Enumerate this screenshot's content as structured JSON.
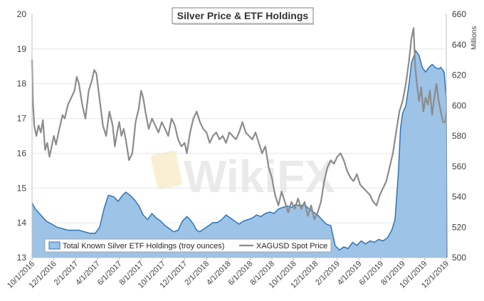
{
  "chart_data": {
    "type": "area+line",
    "title": "Silver Price & ETF Holdings",
    "watermark": "WikiFX",
    "left_axis": {
      "min": 13,
      "max": 20,
      "ticks": [
        "13",
        "14",
        "15",
        "16",
        "17",
        "18",
        "19",
        "20"
      ]
    },
    "right_axis": {
      "min": 500,
      "max": 660,
      "unit_label": "Millions",
      "ticks": [
        "500",
        "520",
        "540",
        "560",
        "580",
        "600",
        "620",
        "640",
        "660"
      ]
    },
    "x_axis": {
      "range_months": [
        0,
        38
      ],
      "ticks": [
        {
          "label": "10/1/2016",
          "m": 0
        },
        {
          "label": "12/1/2016",
          "m": 2
        },
        {
          "label": "2/1/2017",
          "m": 4
        },
        {
          "label": "4/1/2017",
          "m": 6
        },
        {
          "label": "6/1/2017",
          "m": 8
        },
        {
          "label": "8/1/2017",
          "m": 10
        },
        {
          "label": "10/1/2017",
          "m": 12
        },
        {
          "label": "12/1/2017",
          "m": 14
        },
        {
          "label": "2/1/2018",
          "m": 16
        },
        {
          "label": "4/1/2018",
          "m": 18
        },
        {
          "label": "6/1/2018",
          "m": 20
        },
        {
          "label": "8/1/2018",
          "m": 22
        },
        {
          "label": "10/1/2018",
          "m": 24
        },
        {
          "label": "12/1/2018",
          "m": 26
        },
        {
          "label": "2/1/2019",
          "m": 28
        },
        {
          "label": "4/1/2019",
          "m": 30
        },
        {
          "label": "6/1/2019",
          "m": 32
        },
        {
          "label": "8/1/2019",
          "m": 34
        },
        {
          "label": "10/1/2019",
          "m": 36
        },
        {
          "label": "12/1/2019",
          "m": 38
        }
      ]
    },
    "series": [
      {
        "name": "Total Known Silver ETF Holdings (troy ounces)",
        "type": "area",
        "axis": "right",
        "color": "#9dc3e6",
        "edge_color": "#2e75b6",
        "points": [
          [
            0,
            536
          ],
          [
            0.3,
            532
          ],
          [
            0.8,
            528
          ],
          [
            1.3,
            524
          ],
          [
            1.8,
            522
          ],
          [
            2.3,
            520
          ],
          [
            2.8,
            519
          ],
          [
            3.3,
            518
          ],
          [
            3.8,
            518
          ],
          [
            4.3,
            518
          ],
          [
            4.8,
            517
          ],
          [
            5.3,
            516
          ],
          [
            5.8,
            516
          ],
          [
            6.2,
            520
          ],
          [
            6.6,
            532
          ],
          [
            7.0,
            541
          ],
          [
            7.5,
            540
          ],
          [
            7.9,
            537
          ],
          [
            8.3,
            541
          ],
          [
            8.6,
            543
          ],
          [
            9.0,
            541
          ],
          [
            9.4,
            538
          ],
          [
            9.8,
            534
          ],
          [
            10.2,
            528
          ],
          [
            10.6,
            525
          ],
          [
            11.0,
            529
          ],
          [
            11.4,
            526
          ],
          [
            11.8,
            524
          ],
          [
            12.2,
            521
          ],
          [
            12.6,
            519
          ],
          [
            13.0,
            517
          ],
          [
            13.4,
            518
          ],
          [
            13.8,
            524
          ],
          [
            14.2,
            527
          ],
          [
            14.5,
            525
          ],
          [
            14.8,
            522
          ],
          [
            15.1,
            518
          ],
          [
            15.4,
            517
          ],
          [
            15.8,
            519
          ],
          [
            16.2,
            521
          ],
          [
            16.6,
            523
          ],
          [
            17.0,
            523
          ],
          [
            17.4,
            525
          ],
          [
            17.8,
            528
          ],
          [
            18.2,
            526
          ],
          [
            18.6,
            524
          ],
          [
            19.0,
            522
          ],
          [
            19.4,
            524
          ],
          [
            19.8,
            525
          ],
          [
            20.2,
            526
          ],
          [
            20.6,
            528
          ],
          [
            21.0,
            527
          ],
          [
            21.4,
            529
          ],
          [
            21.8,
            530
          ],
          [
            22.2,
            529
          ],
          [
            22.6,
            532
          ],
          [
            23.0,
            533
          ],
          [
            23.4,
            534
          ],
          [
            23.8,
            533
          ],
          [
            24.2,
            535
          ],
          [
            24.6,
            534
          ],
          [
            25.0,
            535
          ],
          [
            25.4,
            532
          ],
          [
            25.8,
            530
          ],
          [
            26.2,
            528
          ],
          [
            26.6,
            525
          ],
          [
            27.0,
            522
          ],
          [
            27.4,
            521
          ],
          [
            27.8,
            508
          ],
          [
            28.2,
            505
          ],
          [
            28.6,
            507
          ],
          [
            29.0,
            506
          ],
          [
            29.4,
            510
          ],
          [
            29.8,
            508
          ],
          [
            30.2,
            511
          ],
          [
            30.6,
            509
          ],
          [
            31.0,
            511
          ],
          [
            31.4,
            510
          ],
          [
            31.8,
            512
          ],
          [
            32.2,
            511
          ],
          [
            32.6,
            513
          ],
          [
            33.0,
            518
          ],
          [
            33.3,
            525
          ],
          [
            33.6,
            555
          ],
          [
            33.8,
            585
          ],
          [
            34.0,
            595
          ],
          [
            34.3,
            600
          ],
          [
            34.6,
            615
          ],
          [
            34.8,
            628
          ],
          [
            35.0,
            632
          ],
          [
            35.2,
            636
          ],
          [
            35.5,
            633
          ],
          [
            35.8,
            625
          ],
          [
            36.1,
            622
          ],
          [
            36.4,
            625
          ],
          [
            36.7,
            627
          ],
          [
            37.0,
            625
          ],
          [
            37.3,
            624
          ],
          [
            37.5,
            625
          ],
          [
            37.8,
            622
          ],
          [
            38.0,
            605
          ],
          [
            38.05,
            500
          ]
        ]
      },
      {
        "name": "XAGUSD Spot Price",
        "type": "line",
        "axis": "left",
        "color": "#8c8c8c",
        "points": [
          [
            0,
            18.7
          ],
          [
            0.08,
            17.5
          ],
          [
            0.2,
            16.8
          ],
          [
            0.4,
            16.5
          ],
          [
            0.6,
            16.8
          ],
          [
            0.8,
            16.6
          ],
          [
            1.0,
            16.95
          ],
          [
            1.2,
            16.1
          ],
          [
            1.4,
            16.3
          ],
          [
            1.6,
            15.9
          ],
          [
            1.8,
            16.2
          ],
          [
            2.0,
            16.5
          ],
          [
            2.2,
            16.25
          ],
          [
            2.5,
            16.7
          ],
          [
            2.8,
            17.1
          ],
          [
            3.0,
            17.0
          ],
          [
            3.3,
            17.4
          ],
          [
            3.6,
            17.6
          ],
          [
            3.9,
            17.8
          ],
          [
            4.1,
            18.2
          ],
          [
            4.3,
            18.0
          ],
          [
            4.6,
            17.4
          ],
          [
            4.9,
            17.0
          ],
          [
            5.2,
            17.8
          ],
          [
            5.5,
            18.1
          ],
          [
            5.7,
            18.4
          ],
          [
            5.9,
            18.3
          ],
          [
            6.1,
            17.8
          ],
          [
            6.3,
            17.3
          ],
          [
            6.5,
            16.8
          ],
          [
            6.8,
            16.5
          ],
          [
            7.1,
            17.2
          ],
          [
            7.4,
            16.8
          ],
          [
            7.6,
            16.2
          ],
          [
            7.8,
            16.6
          ],
          [
            8.0,
            16.9
          ],
          [
            8.2,
            16.5
          ],
          [
            8.4,
            16.7
          ],
          [
            8.6,
            16.4
          ],
          [
            8.9,
            15.8
          ],
          [
            9.2,
            16.0
          ],
          [
            9.5,
            16.9
          ],
          [
            9.8,
            17.3
          ],
          [
            10.0,
            17.8
          ],
          [
            10.2,
            17.6
          ],
          [
            10.4,
            17.2
          ],
          [
            10.7,
            16.7
          ],
          [
            11.0,
            17.0
          ],
          [
            11.3,
            16.8
          ],
          [
            11.6,
            16.6
          ],
          [
            11.9,
            16.9
          ],
          [
            12.2,
            16.7
          ],
          [
            12.5,
            16.5
          ],
          [
            12.8,
            17.0
          ],
          [
            13.1,
            16.8
          ],
          [
            13.4,
            16.4
          ],
          [
            13.7,
            16.2
          ],
          [
            14.0,
            16.3
          ],
          [
            14.2,
            16.0
          ],
          [
            14.5,
            16.6
          ],
          [
            14.8,
            17.0
          ],
          [
            15.1,
            17.2
          ],
          [
            15.4,
            16.9
          ],
          [
            15.7,
            16.7
          ],
          [
            16.0,
            16.6
          ],
          [
            16.3,
            16.3
          ],
          [
            16.6,
            16.5
          ],
          [
            16.9,
            16.6
          ],
          [
            17.2,
            16.4
          ],
          [
            17.5,
            16.5
          ],
          [
            17.8,
            16.3
          ],
          [
            18.1,
            16.6
          ],
          [
            18.4,
            16.5
          ],
          [
            18.7,
            16.4
          ],
          [
            19.0,
            16.6
          ],
          [
            19.3,
            16.9
          ],
          [
            19.6,
            16.6
          ],
          [
            19.9,
            16.5
          ],
          [
            20.2,
            16.4
          ],
          [
            20.5,
            16.6
          ],
          [
            20.8,
            16.3
          ],
          [
            21.1,
            16.0
          ],
          [
            21.4,
            16.2
          ],
          [
            21.7,
            15.6
          ],
          [
            22.0,
            15.3
          ],
          [
            22.3,
            14.8
          ],
          [
            22.6,
            14.5
          ],
          [
            22.9,
            14.9
          ],
          [
            23.2,
            14.6
          ],
          [
            23.5,
            14.3
          ],
          [
            23.8,
            14.6
          ],
          [
            24.1,
            14.4
          ],
          [
            24.4,
            14.7
          ],
          [
            24.7,
            14.4
          ],
          [
            25.0,
            14.6
          ],
          [
            25.3,
            14.2
          ],
          [
            25.6,
            14.5
          ],
          [
            25.9,
            14.1
          ],
          [
            26.2,
            14.3
          ],
          [
            26.5,
            14.6
          ],
          [
            26.8,
            15.2
          ],
          [
            27.1,
            15.6
          ],
          [
            27.4,
            15.8
          ],
          [
            27.7,
            15.7
          ],
          [
            28.0,
            15.9
          ],
          [
            28.3,
            16.0
          ],
          [
            28.6,
            15.8
          ],
          [
            28.9,
            15.5
          ],
          [
            29.2,
            15.3
          ],
          [
            29.5,
            15.2
          ],
          [
            29.8,
            15.4
          ],
          [
            30.1,
            15.1
          ],
          [
            30.4,
            15.0
          ],
          [
            30.7,
            14.9
          ],
          [
            31.0,
            14.8
          ],
          [
            31.3,
            14.6
          ],
          [
            31.6,
            14.5
          ],
          [
            31.9,
            14.8
          ],
          [
            32.2,
            15.0
          ],
          [
            32.5,
            15.2
          ],
          [
            32.8,
            15.6
          ],
          [
            33.1,
            16.0
          ],
          [
            33.4,
            16.6
          ],
          [
            33.7,
            17.2
          ],
          [
            34.0,
            17.5
          ],
          [
            34.3,
            18.0
          ],
          [
            34.6,
            18.7
          ],
          [
            34.8,
            19.3
          ],
          [
            35.0,
            19.6
          ],
          [
            35.15,
            18.5
          ],
          [
            35.3,
            18.0
          ],
          [
            35.5,
            17.5
          ],
          [
            35.7,
            17.9
          ],
          [
            35.9,
            17.2
          ],
          [
            36.1,
            17.6
          ],
          [
            36.3,
            17.4
          ],
          [
            36.5,
            17.8
          ],
          [
            36.7,
            17.1
          ],
          [
            36.9,
            17.6
          ],
          [
            37.1,
            18.0
          ],
          [
            37.3,
            17.5
          ],
          [
            37.5,
            17.2
          ],
          [
            37.7,
            16.9
          ],
          [
            37.9,
            16.9
          ],
          [
            38.0,
            17.2
          ]
        ]
      }
    ],
    "legend": {
      "position": "bottom-left",
      "entries": [
        "Total Known Silver ETF Holdings (troy ounces)",
        "XAGUSD Spot Price"
      ]
    }
  }
}
